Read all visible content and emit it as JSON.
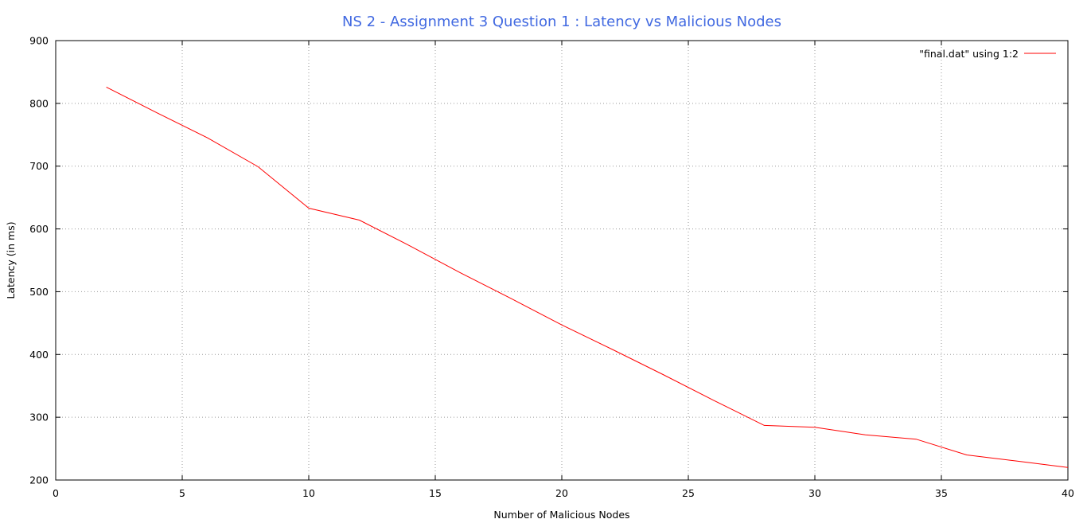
{
  "chart_data": {
    "type": "line",
    "title": "NS 2 - Assignment 3 Question 1 : Latency vs Malicious Nodes",
    "xlabel": "Number of Malicious Nodes",
    "ylabel": "Latency (in ms)",
    "xlim": [
      0,
      40
    ],
    "ylim": [
      200,
      900
    ],
    "xticks": [
      0,
      5,
      10,
      15,
      20,
      25,
      30,
      35,
      40
    ],
    "yticks": [
      200,
      300,
      400,
      500,
      600,
      700,
      800,
      900
    ],
    "grid": true,
    "legend_position": "top-right",
    "series": [
      {
        "name": "\"final.dat\" using 1:2",
        "color": "#ff0000",
        "x": [
          2,
          4,
          6,
          8,
          10,
          12,
          14,
          16,
          18,
          20,
          22,
          24,
          26,
          28,
          30,
          32,
          34,
          36,
          38,
          40
        ],
        "y": [
          826,
          785,
          745,
          699,
          633,
          614,
          573,
          530,
          489,
          447,
          408,
          368,
          327,
          287,
          284,
          272,
          265,
          240,
          230,
          220
        ]
      }
    ]
  }
}
